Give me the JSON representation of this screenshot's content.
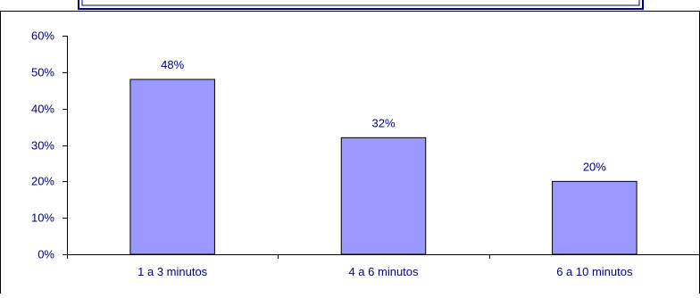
{
  "colors": {
    "bar_fill": "#9999FF",
    "bar_stroke": "#000000",
    "text": "#000080",
    "title_box_border": "#000080",
    "frame": "#000000"
  },
  "chart_data": {
    "type": "bar",
    "title": "",
    "xlabel": "",
    "ylabel": "",
    "categories": [
      "1 a 3 minutos",
      "4 a 6 minutos",
      "6 a 10 minutos"
    ],
    "values": [
      48,
      32,
      20
    ],
    "data_labels": [
      "48%",
      "32%",
      "20%"
    ],
    "ylim": [
      0,
      60
    ],
    "yticks": [
      0,
      10,
      20,
      30,
      40,
      50,
      60
    ],
    "ytick_labels": [
      "0%",
      "10%",
      "20%",
      "30%",
      "40%",
      "50%",
      "60%"
    ],
    "grid": false,
    "legend": "none"
  }
}
